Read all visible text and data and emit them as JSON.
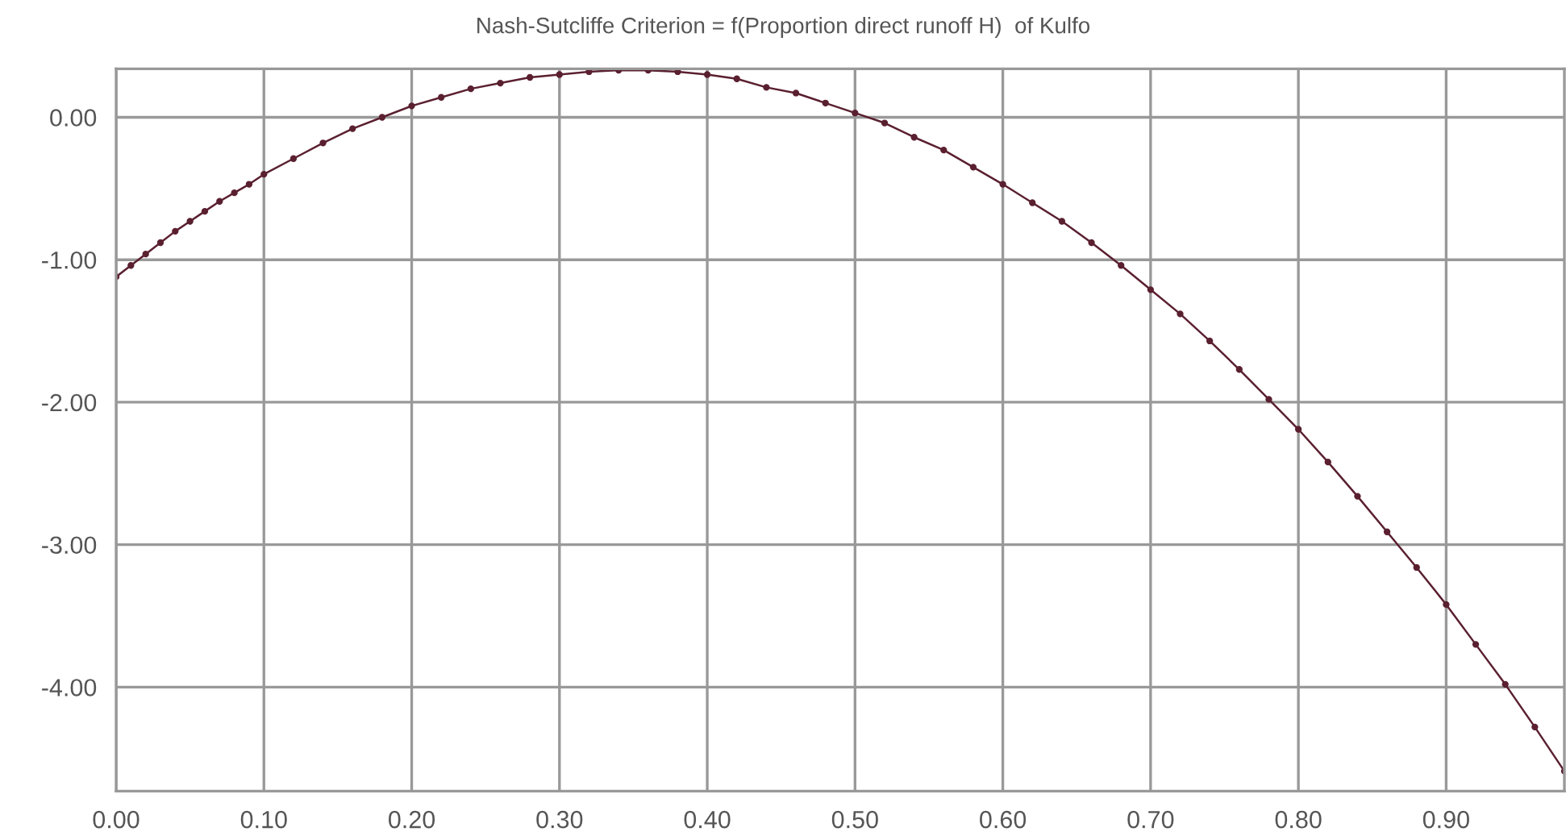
{
  "chart_data": {
    "type": "line",
    "title": "Nash-Sutcliffe Criterion = f(Proportion direct runoff H)  of Kulfo",
    "x": [
      0.0,
      0.01,
      0.02,
      0.03,
      0.04,
      0.05,
      0.06,
      0.07,
      0.08,
      0.09,
      0.1,
      0.12,
      0.14,
      0.16,
      0.18,
      0.2,
      0.22,
      0.24,
      0.26,
      0.28,
      0.3,
      0.32,
      0.34,
      0.36,
      0.38,
      0.4,
      0.42,
      0.44,
      0.46,
      0.48,
      0.5,
      0.52,
      0.54,
      0.56,
      0.58,
      0.6,
      0.62,
      0.64,
      0.66,
      0.68,
      0.7,
      0.72,
      0.74,
      0.76,
      0.78,
      0.8,
      0.82,
      0.84,
      0.86,
      0.88,
      0.9,
      0.92,
      0.94,
      0.96,
      0.98
    ],
    "series": [
      {
        "color": "#5a2030",
        "values": [
          -1.12,
          -1.04,
          -0.96,
          -0.88,
          -0.8,
          -0.73,
          -0.66,
          -0.59,
          -0.53,
          -0.47,
          -0.4,
          -0.29,
          -0.18,
          -0.08,
          0.0,
          0.08,
          0.14,
          0.2,
          0.24,
          0.28,
          0.3,
          0.32,
          0.33,
          0.33,
          0.32,
          0.3,
          0.27,
          0.21,
          0.17,
          0.1,
          0.03,
          -0.04,
          -0.14,
          -0.23,
          -0.35,
          -0.47,
          -0.6,
          -0.73,
          -0.88,
          -1.04,
          -1.21,
          -1.38,
          -1.57,
          -1.77,
          -1.98,
          -2.19,
          -2.42,
          -2.66,
          -2.91,
          -3.16,
          -3.42,
          -3.7,
          -3.98,
          -4.28,
          -4.59
        ]
      }
    ],
    "marker": "circle",
    "line_style": "solid",
    "grid": true,
    "xlim": [
      0,
      0.98
    ],
    "ylim": [
      -4.73,
      0.34
    ],
    "xticks": [
      {
        "value": 0,
        "label": "0.00"
      },
      {
        "value": 0.1,
        "label": "0.10"
      },
      {
        "value": 0.2,
        "label": "0.20"
      },
      {
        "value": 0.3,
        "label": "0.30"
      },
      {
        "value": 0.4,
        "label": "0.40"
      },
      {
        "value": 0.5,
        "label": "0.50"
      },
      {
        "value": 0.6,
        "label": "0.60"
      },
      {
        "value": 0.7,
        "label": "0.70"
      },
      {
        "value": 0.8,
        "label": "0.80"
      },
      {
        "value": 0.9,
        "label": "0.90"
      }
    ],
    "yticks": [
      {
        "value": 0,
        "label": "0.00"
      },
      {
        "value": -1,
        "label": "-1.00"
      },
      {
        "value": -2,
        "label": "-2.00"
      },
      {
        "value": -3,
        "label": "-3.00"
      },
      {
        "value": -4,
        "label": "-4.00"
      }
    ]
  }
}
